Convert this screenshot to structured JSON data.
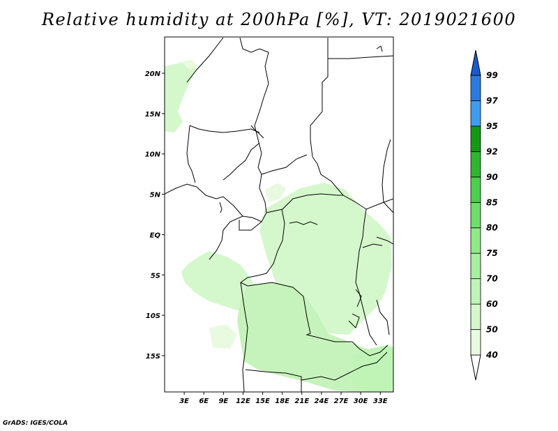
{
  "title": "Relative humidity at 200hPa [%], VT: 2019021600",
  "credit": "GrADS: IGES/COLA",
  "map": {
    "lat_ticks": [
      "20N",
      "15N",
      "10N",
      "5N",
      "EQ",
      "5S",
      "10S",
      "15S"
    ],
    "lat_values": [
      20,
      15,
      10,
      5,
      0,
      -5,
      -10,
      -15
    ],
    "lon_ticks": [
      "3E",
      "6E",
      "9E",
      "12E",
      "15E",
      "18E",
      "21E",
      "24E",
      "27E",
      "30E",
      "33E"
    ],
    "lon_values": [
      3,
      6,
      9,
      12,
      15,
      18,
      21,
      24,
      27,
      30,
      33
    ],
    "lon_range": [
      0,
      35
    ],
    "lat_range": [
      -19.5,
      24.5
    ]
  },
  "colorbar": {
    "labels": [
      "40",
      "50",
      "60",
      "70",
      "75",
      "80",
      "85",
      "90",
      "92",
      "95",
      "97",
      "99"
    ],
    "colors": [
      "#ffffff",
      "#e8fbe0",
      "#d5f7cc",
      "#bff4b6",
      "#a7f0a0",
      "#8fea86",
      "#6ede6a",
      "#4bcf4c",
      "#2eb62e",
      "#139a13",
      "#3f9df0",
      "#2a7ae0",
      "#1a5ad0"
    ]
  }
}
